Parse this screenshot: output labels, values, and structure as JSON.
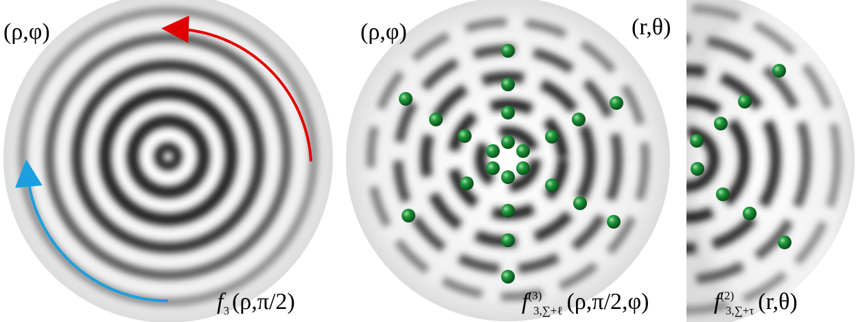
{
  "panels": [
    {
      "coord_label": "(ρ,φ)",
      "function": {
        "name": "f",
        "sub": "3",
        "args": "(ρ,π/2)"
      }
    },
    {
      "coord_label": "(ρ,φ)",
      "function": {
        "name": "f",
        "sup": "(3)",
        "sub": "3,∑+ℓ",
        "args": "(ρ,π/2,φ)"
      }
    },
    {
      "coord_label": "(r,θ)",
      "function": {
        "name": "f",
        "sup": "(2)",
        "sub": "3,∑+τ",
        "args": "(r,θ)"
      }
    }
  ]
}
